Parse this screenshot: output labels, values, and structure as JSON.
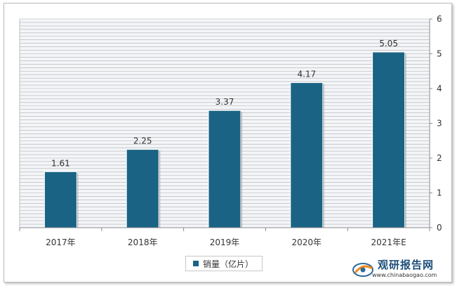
{
  "chart_data": {
    "type": "bar",
    "categories": [
      "2017年",
      "2018年",
      "2019年",
      "2020年",
      "2021年E"
    ],
    "series": [
      {
        "name": "销量（亿片）",
        "values": [
          1.61,
          2.25,
          3.37,
          4.17,
          5.05
        ]
      }
    ],
    "data_labels": [
      "1.61",
      "2.25",
      "3.37",
      "4.17",
      "5.05"
    ],
    "y_ticks": [
      "0",
      "1",
      "2",
      "3",
      "4",
      "5",
      "6"
    ],
    "ylim": [
      0,
      6
    ],
    "y_axis_side": "right",
    "grid": true,
    "legend_position": "bottom",
    "colors": {
      "bar": "#1a6385",
      "grid": "#b0b0b0",
      "plot_background": "#f3f5f8"
    }
  },
  "legend": {
    "label": "销量（亿片）"
  },
  "watermark": {
    "cn": "观研报告网",
    "en": "www.chinabaogao.com"
  }
}
